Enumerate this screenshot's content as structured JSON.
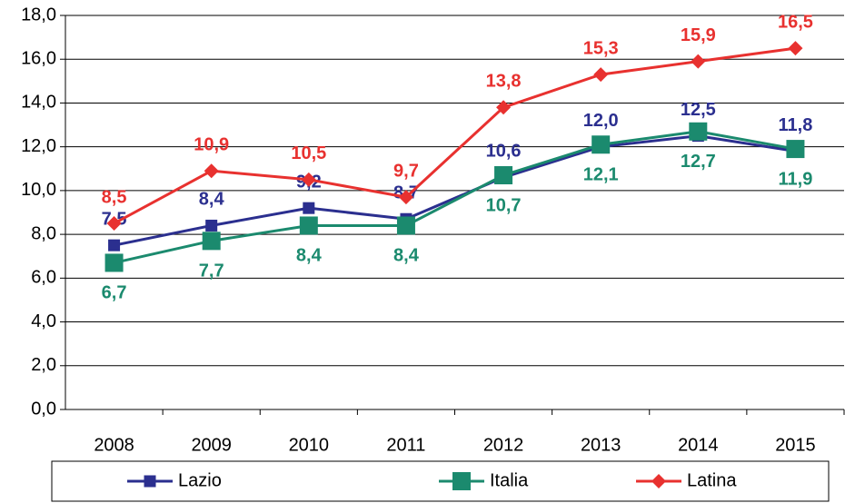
{
  "chart_data": {
    "type": "line",
    "categories": [
      "2008",
      "2009",
      "2010",
      "2011",
      "2012",
      "2013",
      "2014",
      "2015"
    ],
    "series": [
      {
        "name": "Lazio",
        "color": "#2b2f8f",
        "marker": "square",
        "values": [
          7.5,
          8.4,
          9.2,
          8.7,
          10.6,
          12.0,
          12.5,
          11.8
        ],
        "value_labels": [
          "7,5",
          "8,4",
          "9,2",
          "8,7",
          "10,6",
          "12,0",
          "12,5",
          "11,8"
        ],
        "label_position": "above"
      },
      {
        "name": "Italia",
        "color": "#1b8a6e",
        "marker": "big-square",
        "values": [
          6.7,
          7.7,
          8.4,
          8.4,
          10.7,
          12.1,
          12.7,
          11.9
        ],
        "value_labels": [
          "6,7",
          "7,7",
          "8,4",
          "8,4",
          "10,7",
          "12,1",
          "12,7",
          "11,9"
        ],
        "label_position": "below"
      },
      {
        "name": "Latina",
        "color": "#e8312f",
        "marker": "diamond",
        "values": [
          8.5,
          10.9,
          10.5,
          9.7,
          13.8,
          15.3,
          15.9,
          16.5
        ],
        "value_labels": [
          "8,5",
          "10,9",
          "10,5",
          "9,7",
          "13,8",
          "15,3",
          "15,9",
          "16,5"
        ],
        "label_position": "above"
      }
    ],
    "ylim": [
      0,
      18
    ],
    "yticks": [
      {
        "value": 0,
        "label": "0,0"
      },
      {
        "value": 2,
        "label": "2,0"
      },
      {
        "value": 4,
        "label": "4,0"
      },
      {
        "value": 6,
        "label": "6,0"
      },
      {
        "value": 8,
        "label": "8,0"
      },
      {
        "value": 10,
        "label": "10,0"
      },
      {
        "value": 12,
        "label": "12,0"
      },
      {
        "value": 14,
        "label": "14,0"
      },
      {
        "value": 16,
        "label": "16,0"
      },
      {
        "value": 18,
        "label": "18,0"
      }
    ],
    "grid": true,
    "legend": "bottom"
  }
}
